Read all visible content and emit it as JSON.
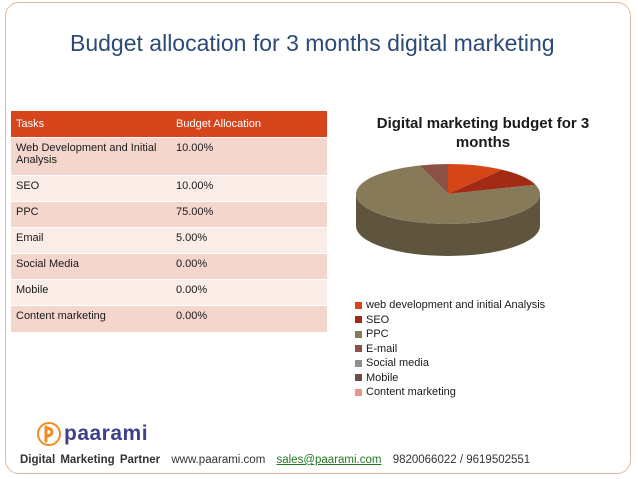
{
  "slide": {
    "title": "Budget allocation for 3 months digital marketing"
  },
  "table": {
    "headers": [
      "Tasks",
      "Budget Allocation"
    ],
    "rows": [
      {
        "task": "Web Development and Initial Analysis",
        "allocation": "10.00%"
      },
      {
        "task": "SEO",
        "allocation": "10.00%"
      },
      {
        "task": "PPC",
        "allocation": "75.00%"
      },
      {
        "task": "Email",
        "allocation": "5.00%"
      },
      {
        "task": "Social Media",
        "allocation": "0.00%"
      },
      {
        "task": "Mobile",
        "allocation": "0.00%"
      },
      {
        "task": "Content marketing",
        "allocation": "0.00%"
      }
    ]
  },
  "chart_data": {
    "type": "pie",
    "title": "Digital marketing budget for 3 months",
    "legend_position": "bottom",
    "categories": [
      "web development and initial Analysis",
      "SEO",
      "PPC",
      "E-mail",
      "Social media",
      "Mobile",
      "Content marketing"
    ],
    "values": [
      10,
      10,
      75,
      5,
      0,
      0,
      0
    ],
    "colors": [
      "#d44617",
      "#a32b16",
      "#877a59",
      "#8b5248",
      "#8c8e91",
      "#6f4c44",
      "#e8958a"
    ]
  },
  "logo": {
    "text": "paarami"
  },
  "footer": {
    "partner": "Digital  Marketing  Partner",
    "website": "www.paarami.com",
    "email": "sales@paarami.com",
    "phones": "9820066022  / 9619502551"
  }
}
